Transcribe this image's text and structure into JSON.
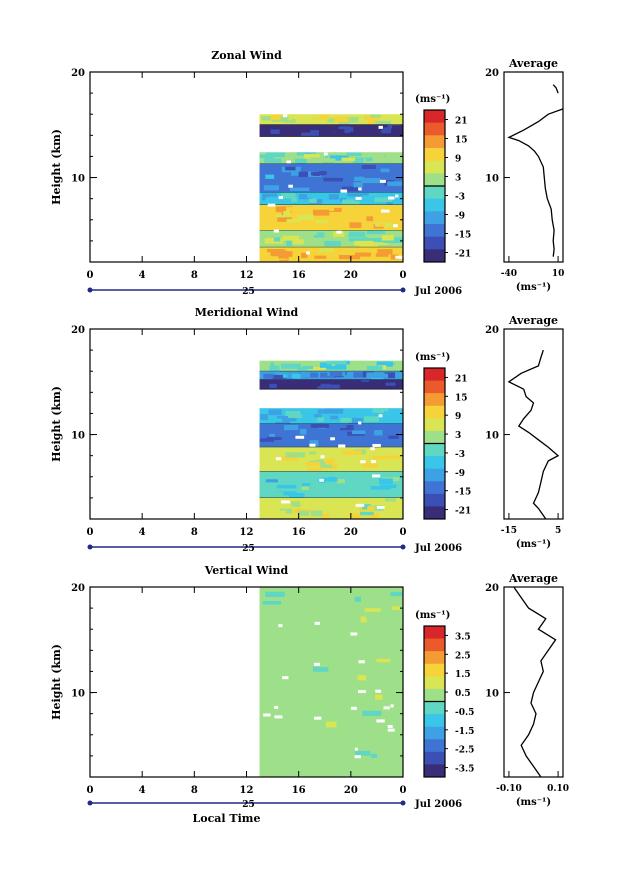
{
  "chart_data": [
    {
      "type": "heatmap",
      "title": "Zonal Wind",
      "ylabel": "Height (km)",
      "xticks": [
        "0",
        "4",
        "8",
        "12",
        "16",
        "20",
        "0"
      ],
      "xlim": [
        0,
        24
      ],
      "yticks": [
        "10",
        "20"
      ],
      "ylim": [
        2,
        20
      ],
      "data_start_hour": 13,
      "date_marker": "25",
      "date_label": "Jul 2006",
      "colorbar": {
        "unit": "(ms⁻¹)",
        "ticks": [
          "21",
          "15",
          "9",
          "3",
          "-3",
          "-9",
          "-15",
          "-21"
        ],
        "range": [
          -24,
          24
        ]
      },
      "layers": [
        {
          "top": 16.0,
          "bottom": 15.0,
          "value": 6
        },
        {
          "top": 15.0,
          "bottom": 13.9,
          "value": -22
        },
        {
          "top": 13.9,
          "bottom": 12.4,
          "value": null
        },
        {
          "top": 12.4,
          "bottom": 11.3,
          "value": 0
        },
        {
          "top": 11.3,
          "bottom": 8.6,
          "value": -13
        },
        {
          "top": 8.6,
          "bottom": 7.4,
          "value": -5
        },
        {
          "top": 7.4,
          "bottom": 5.0,
          "value": 9
        },
        {
          "top": 5.0,
          "bottom": 3.4,
          "value": 2
        },
        {
          "top": 3.4,
          "bottom": 2.0,
          "value": 11
        }
      ],
      "average_panel": {
        "title": "Average",
        "xticks": [
          "-40",
          "10"
        ],
        "xlim": [
          -45,
          15
        ],
        "yticks": [
          "10",
          "20"
        ],
        "xlabel": "(ms⁻¹)",
        "profile": [
          [
            2.5,
            5
          ],
          [
            3.2,
            6
          ],
          [
            4.0,
            5
          ],
          [
            5.0,
            6
          ],
          [
            6.0,
            4
          ],
          [
            7.0,
            3
          ],
          [
            8.0,
            -1
          ],
          [
            9.0,
            -3
          ],
          [
            10.0,
            -4
          ],
          [
            11.0,
            -5
          ],
          [
            12.0,
            -10
          ],
          [
            12.5,
            -14
          ],
          [
            13.0,
            -20
          ],
          [
            13.5,
            -30
          ],
          [
            13.8,
            -40
          ],
          [
            14.5,
            -25
          ],
          [
            15.3,
            -10
          ],
          [
            16.0,
            0
          ],
          [
            16.5,
            15
          ]
        ],
        "profile_upper": [
          [
            18.0,
            10
          ],
          [
            18.5,
            8
          ],
          [
            18.8,
            5
          ]
        ]
      }
    },
    {
      "type": "heatmap",
      "title": "Meridional Wind",
      "ylabel": "Height (km)",
      "xticks": [
        "0",
        "4",
        "8",
        "12",
        "16",
        "20",
        "0"
      ],
      "xlim": [
        0,
        24
      ],
      "yticks": [
        "10",
        "20"
      ],
      "ylim": [
        2,
        20
      ],
      "data_start_hour": 13,
      "date_marker": "25",
      "date_label": "Jul 2006",
      "colorbar": {
        "unit": "(ms⁻¹)",
        "ticks": [
          "21",
          "15",
          "9",
          "3",
          "-3",
          "-9",
          "-15",
          "-21"
        ],
        "range": [
          -24,
          24
        ]
      },
      "layers": [
        {
          "top": 17.0,
          "bottom": 16.0,
          "value": 0
        },
        {
          "top": 16.0,
          "bottom": 15.2,
          "value": -12
        },
        {
          "top": 15.2,
          "bottom": 14.3,
          "value": -22
        },
        {
          "top": 14.3,
          "bottom": 12.5,
          "value": null
        },
        {
          "top": 12.5,
          "bottom": 11.0,
          "value": -6
        },
        {
          "top": 11.0,
          "bottom": 8.8,
          "value": -15
        },
        {
          "top": 8.8,
          "bottom": 6.5,
          "value": 7
        },
        {
          "top": 6.5,
          "bottom": 4.0,
          "value": -4
        },
        {
          "top": 4.0,
          "bottom": 2.0,
          "value": 4
        }
      ],
      "average_panel": {
        "title": "Average",
        "xticks": [
          "-15",
          "5"
        ],
        "xlim": [
          -17,
          7
        ],
        "yticks": [
          "10",
          "20"
        ],
        "xlabel": "(ms⁻¹)",
        "profile": [
          [
            2.0,
            0
          ],
          [
            3.0,
            -3
          ],
          [
            3.5,
            -5
          ],
          [
            4.5,
            -3
          ],
          [
            5.5,
            -2
          ],
          [
            6.5,
            -1
          ],
          [
            7.5,
            1
          ],
          [
            8.0,
            5
          ],
          [
            8.8,
            1
          ],
          [
            9.5,
            -3
          ],
          [
            10.2,
            -7
          ],
          [
            10.8,
            -11
          ],
          [
            11.5,
            -9
          ],
          [
            12.3,
            -6
          ],
          [
            13.0,
            -5
          ],
          [
            13.6,
            -8
          ],
          [
            14.3,
            -9
          ],
          [
            15.0,
            -15
          ],
          [
            15.8,
            -10
          ],
          [
            16.5,
            -3
          ],
          [
            17.3,
            -2
          ],
          [
            18.0,
            -1
          ]
        ]
      }
    },
    {
      "type": "heatmap",
      "title": "Vertical Wind",
      "ylabel": "Height (km)",
      "xlabel": "Local Time",
      "xticks": [
        "0",
        "4",
        "8",
        "12",
        "16",
        "20",
        "0"
      ],
      "xlim": [
        0,
        24
      ],
      "yticks": [
        "10",
        "20"
      ],
      "ylim": [
        2,
        20
      ],
      "data_start_hour": 13,
      "date_marker": "25",
      "date_label": "Jul 2006",
      "colorbar": {
        "unit": "(ms⁻¹)",
        "ticks": [
          "3.5",
          "2.5",
          "1.5",
          "0.5",
          "-0.5",
          "-1.5",
          "-2.5",
          "-3.5"
        ],
        "range": [
          -4,
          4
        ]
      },
      "layers": [
        {
          "top": 20.0,
          "bottom": 2.0,
          "value": 0.2
        }
      ],
      "average_panel": {
        "title": "Average",
        "xticks": [
          "-0.10",
          "0.10"
        ],
        "xlim": [
          -0.12,
          0.12
        ],
        "yticks": [
          "10",
          "20"
        ],
        "xlabel": "(ms⁻¹)",
        "profile": [
          [
            2.0,
            0.03
          ],
          [
            3.0,
            0.0
          ],
          [
            4.0,
            -0.03
          ],
          [
            5.0,
            -0.05
          ],
          [
            6.0,
            -0.02
          ],
          [
            7.0,
            0.0
          ],
          [
            8.0,
            0.01
          ],
          [
            9.0,
            -0.01
          ],
          [
            10.0,
            0.0
          ],
          [
            11.0,
            0.02
          ],
          [
            12.0,
            0.04
          ],
          [
            13.0,
            0.03
          ],
          [
            14.0,
            0.06
          ],
          [
            15.0,
            0.09
          ],
          [
            16.0,
            0.02
          ],
          [
            17.0,
            0.05
          ],
          [
            18.0,
            -0.02
          ],
          [
            19.0,
            -0.05
          ],
          [
            20.0,
            -0.08
          ]
        ]
      }
    }
  ]
}
